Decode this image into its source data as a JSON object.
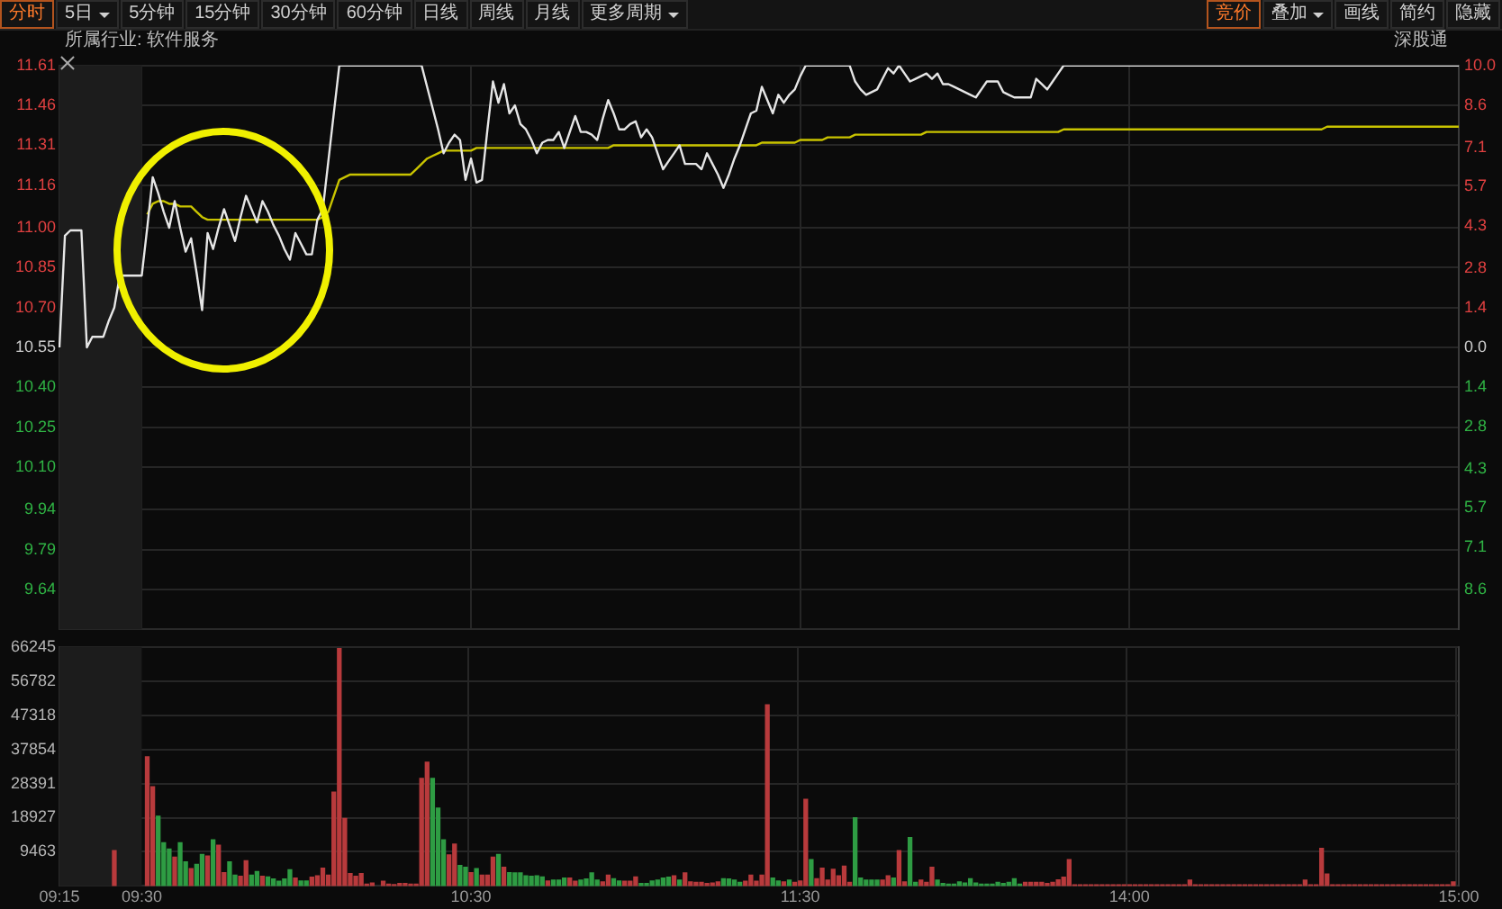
{
  "chart_data": [
    {
      "type": "line",
      "annotations": [
        "分时",
        "5日",
        "5分钟",
        "15分钟",
        "30分钟",
        "60分钟",
        "日线",
        "周线",
        "月线",
        "更多周期",
        "竞价",
        "叠加",
        "画线",
        "简约",
        "隐藏",
        "所属行业: 软件服务",
        "深股通"
      ],
      "categories": [
        "09:15",
        null,
        null,
        null,
        null,
        null,
        null,
        null,
        null,
        null,
        null,
        null,
        null,
        null,
        null,
        "09:30",
        null,
        null,
        null,
        null,
        null,
        null,
        null,
        null,
        null,
        null,
        null,
        null,
        null,
        null,
        null,
        null,
        null,
        null,
        null,
        null,
        null,
        null,
        null,
        null,
        null,
        null,
        null,
        null,
        null,
        null,
        null,
        null,
        null,
        null,
        null,
        null,
        null,
        null,
        null,
        null,
        null,
        null,
        null,
        null,
        null,
        null,
        null,
        null,
        null,
        null,
        null,
        null,
        null,
        null,
        null,
        null,
        null,
        null,
        null,
        "10:30",
        null,
        null,
        null,
        null,
        null,
        null,
        null,
        null,
        null,
        null,
        null,
        null,
        null,
        null,
        null,
        null,
        null,
        null,
        null,
        null,
        null,
        null,
        null,
        null,
        null,
        null,
        null,
        null,
        null,
        null,
        null,
        null,
        null,
        null,
        null,
        null,
        null,
        null,
        null,
        null,
        null,
        null,
        null,
        null,
        null,
        null,
        null,
        null,
        null,
        null,
        null,
        null,
        null,
        null,
        null,
        null,
        null,
        null,
        null,
        "11:30",
        null,
        null,
        null,
        null,
        null,
        null,
        null,
        null,
        null,
        null,
        null,
        null,
        null,
        null,
        null,
        null,
        null,
        null,
        null,
        null,
        null,
        null,
        null,
        null,
        null,
        null,
        null,
        null,
        null,
        null,
        null,
        null,
        null,
        null,
        null,
        null,
        null,
        null,
        null,
        null,
        null,
        null,
        null,
        null,
        null,
        null,
        null,
        null,
        null,
        null,
        null,
        null,
        null,
        null,
        null,
        null,
        null,
        null,
        null,
        "14:00",
        null,
        null,
        null,
        null,
        null,
        null,
        null,
        null,
        null,
        null,
        null,
        null,
        null,
        null,
        null,
        null,
        null,
        null,
        null,
        null,
        null,
        null,
        null,
        null,
        null,
        null,
        null,
        null,
        null,
        null,
        null,
        null,
        null,
        null,
        null,
        null,
        null,
        null,
        null,
        null,
        null,
        null,
        null,
        null,
        null,
        null,
        null,
        null,
        null,
        null,
        null,
        null,
        null,
        null,
        null,
        null,
        null,
        null,
        null,
        "15:00"
      ],
      "ylim": [
        9.49,
        11.61
      ],
      "yticks": [
        11.61,
        11.46,
        11.31,
        11.16,
        {
          "value": 11.0,
          "label": "11.00"
        },
        10.85,
        {
          "value": 10.7,
          "label": "10.70"
        },
        10.55,
        {
          "value": 10.4,
          "label": "10.40"
        },
        10.25,
        {
          "value": 10.1,
          "label": "10.10"
        },
        9.94,
        9.79,
        9.64
      ],
      "y2lim": [
        -10.0,
        10.0
      ],
      "y2ticks": [
        {
          "value": 10,
          "label": "10.0"
        },
        8.6,
        7.1,
        5.7,
        4.3,
        2.8,
        1.4,
        {
          "value": 0,
          "label": "0.0"
        },
        {
          "value": -1.4,
          "label": "1.4"
        },
        {
          "value": -2.8,
          "label": "2.8"
        },
        {
          "value": -4.3,
          "label": "4.3"
        },
        {
          "value": -5.7,
          "label": "5.7"
        },
        {
          "value": -7.1,
          "label": "7.1"
        },
        {
          "value": -8.6,
          "label": "8.6"
        }
      ],
      "grid": true,
      "tick_labels": "y",
      "bands": [
        {
          "axis": "x",
          "from": "09:15",
          "to": "09:30",
          "color": "#1c1c1c"
        }
      ],
      "series": [
        {
          "color": "#e6e6e6",
          "values": [
            10.55,
            10.97,
            10.99,
            10.99,
            10.99,
            10.55,
            10.59,
            10.59,
            10.59,
            10.65,
            10.7,
            10.82,
            10.82,
            10.82,
            10.82,
            10.82,
            11.0,
            11.19,
            11.13,
            11.06,
            11.0,
            11.1,
            11.0,
            10.91,
            10.96,
            10.83,
            10.69,
            10.98,
            10.92,
            11.0,
            11.07,
            11.01,
            10.95,
            11.04,
            11.12,
            11.07,
            11.02,
            11.1,
            11.06,
            11.01,
            10.97,
            10.92,
            10.88,
            10.98,
            10.94,
            10.9,
            10.9,
            11.03,
            11.07,
            11.25,
            11.43,
            11.61,
            11.61,
            11.61,
            11.61,
            11.61,
            11.61,
            11.61,
            11.61,
            11.61,
            11.61,
            11.61,
            11.61,
            11.61,
            11.61,
            11.61,
            11.61,
            11.53,
            11.45,
            11.37,
            11.28,
            11.32,
            11.35,
            11.33,
            11.18,
            11.26,
            11.17,
            11.18,
            11.37,
            11.55,
            11.47,
            11.54,
            11.43,
            11.46,
            11.39,
            11.37,
            11.33,
            11.28,
            11.32,
            11.33,
            11.33,
            11.36,
            11.3,
            11.36,
            11.42,
            11.36,
            11.36,
            11.35,
            11.33,
            11.41,
            11.48,
            11.43,
            11.37,
            11.37,
            11.39,
            11.4,
            11.34,
            11.37,
            11.34,
            11.28,
            11.22,
            11.25,
            11.28,
            11.31,
            11.24,
            11.24,
            11.24,
            11.22,
            11.28,
            11.24,
            11.2,
            11.15,
            11.2,
            11.26,
            11.31,
            11.37,
            11.43,
            11.44,
            11.53,
            11.48,
            11.43,
            11.5,
            11.47,
            11.5,
            11.52,
            11.57,
            11.61,
            11.61,
            11.61,
            11.61,
            11.61,
            11.61,
            11.61,
            11.61,
            11.61,
            11.55,
            11.52,
            11.5,
            11.51,
            11.52,
            11.56,
            11.6,
            11.58,
            11.61,
            11.58,
            11.55,
            11.56,
            11.57,
            11.58,
            11.56,
            11.58,
            11.54,
            11.54,
            11.53,
            11.52,
            11.51,
            11.5,
            11.49,
            11.52,
            11.55,
            11.55,
            11.55,
            11.51,
            11.5,
            11.49,
            11.49,
            11.49,
            11.49,
            11.56,
            11.54,
            11.52,
            11.55,
            11.58,
            11.61,
            11.61,
            11.61,
            11.61,
            11.61,
            11.61,
            11.61,
            11.61,
            11.61,
            11.61,
            11.61,
            11.61,
            11.61,
            11.61,
            11.61,
            11.61,
            11.61,
            11.61,
            11.61,
            11.61,
            11.61,
            11.61,
            11.61,
            11.61,
            11.61,
            11.61,
            11.61,
            11.61,
            11.61,
            11.61,
            11.61,
            11.61,
            11.61,
            11.61,
            11.61,
            11.61,
            11.61,
            11.61,
            11.61,
            11.61,
            11.61,
            11.61,
            11.61,
            11.61,
            11.61,
            11.61,
            11.61,
            11.61,
            11.61,
            11.61,
            11.61,
            11.61,
            11.61,
            11.61,
            11.61,
            11.61,
            11.61,
            11.61,
            11.61,
            11.61,
            11.61,
            11.61,
            11.61,
            11.61,
            11.61,
            11.61,
            11.61,
            11.61,
            11.61,
            11.61,
            11.61,
            11.61,
            11.61
          ]
        },
        {
          "color": "#c9c400",
          "values": [
            null,
            null,
            null,
            null,
            null,
            null,
            null,
            null,
            null,
            null,
            null,
            null,
            null,
            null,
            null,
            null,
            11.05,
            11.09,
            11.1,
            11.1,
            11.09,
            11.09,
            11.08,
            11.08,
            11.08,
            11.06,
            11.04,
            11.03,
            11.03,
            11.03,
            11.03,
            11.03,
            11.03,
            11.03,
            11.03,
            11.03,
            11.03,
            11.03,
            11.03,
            11.03,
            11.03,
            11.03,
            11.03,
            11.03,
            11.03,
            11.03,
            11.03,
            11.03,
            11.04,
            11.06,
            11.12,
            11.18,
            11.19,
            11.2,
            11.2,
            11.2,
            11.2,
            11.2,
            11.2,
            11.2,
            11.2,
            11.2,
            11.2,
            11.2,
            11.2,
            11.22,
            11.24,
            11.26,
            11.27,
            11.28,
            11.29,
            11.29,
            11.29,
            11.29,
            11.29,
            11.29,
            11.3,
            11.3,
            11.3,
            11.3,
            11.3,
            11.3,
            11.3,
            11.3,
            11.3,
            11.3,
            11.3,
            11.3,
            11.3,
            11.3,
            11.3,
            11.3,
            11.3,
            11.3,
            11.3,
            11.3,
            11.3,
            11.3,
            11.3,
            11.3,
            11.3,
            11.31,
            11.31,
            11.31,
            11.31,
            11.31,
            11.31,
            11.31,
            11.31,
            11.31,
            11.31,
            11.31,
            11.31,
            11.31,
            11.31,
            11.31,
            11.31,
            11.31,
            11.31,
            11.31,
            11.31,
            11.31,
            11.31,
            11.31,
            11.31,
            11.31,
            11.31,
            11.31,
            11.32,
            11.32,
            11.32,
            11.32,
            11.32,
            11.32,
            11.32,
            11.33,
            11.33,
            11.33,
            11.33,
            11.33,
            11.34,
            11.34,
            11.34,
            11.34,
            11.34,
            11.35,
            11.35,
            11.35,
            11.35,
            11.35,
            11.35,
            11.35,
            11.35,
            11.35,
            11.35,
            11.35,
            11.35,
            11.35,
            11.36,
            11.36,
            11.36,
            11.36,
            11.36,
            11.36,
            11.36,
            11.36,
            11.36,
            11.36,
            11.36,
            11.36,
            11.36,
            11.36,
            11.36,
            11.36,
            11.36,
            11.36,
            11.36,
            11.36,
            11.36,
            11.36,
            11.36,
            11.36,
            11.36,
            11.37,
            11.37,
            11.37,
            11.37,
            11.37,
            11.37,
            11.37,
            11.37,
            11.37,
            11.37,
            11.37,
            11.37,
            11.37,
            11.37,
            11.37,
            11.37,
            11.37,
            11.37,
            11.37,
            11.37,
            11.37,
            11.37,
            11.37,
            11.37,
            11.37,
            11.37,
            11.37,
            11.37,
            11.37,
            11.37,
            11.37,
            11.37,
            11.37,
            11.37,
            11.37,
            11.37,
            11.37,
            11.37,
            11.37,
            11.37,
            11.37,
            11.37,
            11.37,
            11.37,
            11.37,
            11.37,
            11.37,
            11.37,
            11.38,
            11.38,
            11.38,
            11.38,
            11.38,
            11.38,
            11.38,
            11.38,
            11.38,
            11.38,
            11.38,
            11.38,
            11.38,
            11.38,
            11.38,
            11.38,
            11.38,
            11.38,
            11.38,
            11.38,
            11.38,
            11.38,
            11.38,
            11.38,
            11.38
          ]
        }
      ]
    },
    {
      "type": "bar",
      "categories": [
        "09:15",
        null,
        null,
        null,
        null,
        null,
        null,
        null,
        null,
        null,
        null,
        null,
        null,
        null,
        null,
        "09:30",
        null,
        null,
        null,
        null,
        null,
        null,
        null,
        null,
        null,
        null,
        null,
        null,
        null,
        null,
        null,
        null,
        null,
        null,
        null,
        null,
        null,
        null,
        null,
        null,
        null,
        null,
        null,
        null,
        null,
        null,
        null,
        null,
        null,
        null,
        null,
        null,
        null,
        null,
        null,
        null,
        null,
        null,
        null,
        null,
        null,
        null,
        null,
        null,
        null,
        null,
        null,
        null,
        null,
        null,
        null,
        null,
        null,
        null,
        null,
        "10:30",
        null,
        null,
        null,
        null,
        null,
        null,
        null,
        null,
        null,
        null,
        null,
        null,
        null,
        null,
        null,
        null,
        null,
        null,
        null,
        null,
        null,
        null,
        null,
        null,
        null,
        null,
        null,
        null,
        null,
        null,
        null,
        null,
        null,
        null,
        null,
        null,
        null,
        null,
        null,
        null,
        null,
        null,
        null,
        null,
        null,
        null,
        null,
        null,
        null,
        null,
        null,
        null,
        null,
        null,
        null,
        null,
        null,
        null,
        null,
        "11:30",
        null,
        null,
        null,
        null,
        null,
        null,
        null,
        null,
        null,
        null,
        null,
        null,
        null,
        null,
        null,
        null,
        null,
        null,
        null,
        null,
        null,
        null,
        null,
        null,
        null,
        null,
        null,
        null,
        null,
        null,
        null,
        null,
        null,
        null,
        null,
        null,
        null,
        null,
        null,
        null,
        null,
        null,
        null,
        null,
        null,
        null,
        null,
        null,
        null,
        null,
        null,
        null,
        null,
        null,
        null,
        null,
        null,
        null,
        null,
        "14:00",
        null,
        null,
        null,
        null,
        null,
        null,
        null,
        null,
        null,
        null,
        null,
        null,
        null,
        null,
        null,
        null,
        null,
        null,
        null,
        null,
        null,
        null,
        null,
        null,
        null,
        null,
        null,
        null,
        null,
        null,
        null,
        null,
        null,
        null,
        null,
        null,
        null,
        null,
        null,
        null,
        null,
        null,
        null,
        null,
        null,
        null,
        null,
        null,
        null,
        null,
        null,
        null,
        null,
        null,
        null,
        null,
        null,
        null,
        null,
        "15:00"
      ],
      "ylim": [
        0,
        66245
      ],
      "yticks": [
        66245,
        56782,
        47318,
        37854,
        28391,
        18927,
        9463
      ],
      "grid": true,
      "bands": [
        {
          "axis": "x",
          "from": "09:15",
          "to": "09:30",
          "color": "#1c1c1c"
        }
      ],
      "values": [
        null,
        null,
        null,
        null,
        null,
        null,
        null,
        null,
        null,
        null,
        9800,
        null,
        null,
        null,
        null,
        null,
        35800,
        27500,
        19300,
        12000,
        10200,
        8000,
        12000,
        6700,
        4800,
        6000,
        8700,
        8300,
        12800,
        11300,
        3700,
        6700,
        3000,
        2700,
        7000,
        3000,
        4000,
        2700,
        2500,
        1900,
        1300,
        1900,
        4500,
        2200,
        1400,
        1400,
        2400,
        2800,
        4900,
        3000,
        26000,
        65800,
        18700,
        3400,
        2700,
        3400,
        500,
        800,
        null,
        1300,
        500,
        400,
        700,
        700,
        500,
        500,
        29800,
        34300,
        29800,
        21600,
        12800,
        8600,
        11600,
        5700,
        5200,
        3700,
        4800,
        3000,
        3000,
        8000,
        8700,
        5200,
        3700,
        3600,
        3600,
        2800,
        2700,
        2800,
        2500,
        1400,
        1600,
        1600,
        2200,
        2200,
        1300,
        1600,
        1900,
        3600,
        1600,
        1100,
        3000,
        2000,
        1400,
        1300,
        1300,
        2500,
        700,
        700,
        1400,
        1600,
        2200,
        2400,
        2800,
        1600,
        3600,
        1100,
        1000,
        1000,
        700,
        800,
        1100,
        2000,
        1900,
        1600,
        1000,
        1300,
        3000,
        1300,
        3000,
        50200,
        2200,
        1400,
        1100,
        1600,
        1000,
        1400,
        24000,
        7300,
        2000,
        4900,
        1600,
        4600,
        2800,
        5500,
        1000,
        18900,
        2200,
        1600,
        1600,
        1600,
        1600,
        2800,
        2200,
        9800,
        1100,
        13400,
        1000,
        1600,
        1000,
        5200,
        1600,
        700,
        500,
        500,
        1100,
        800,
        2000,
        800,
        500,
        500,
        500,
        1000,
        700,
        1000,
        2000,
        500,
        1000,
        1000,
        1000,
        1000,
        700,
        1000,
        1700,
        2400,
        7300,
        300,
        300,
        300,
        300,
        300,
        300,
        300,
        300,
        300,
        300,
        300,
        300,
        300,
        300,
        300,
        300,
        300,
        300,
        300,
        300,
        300,
        1600,
        300,
        300,
        300,
        300,
        300,
        300,
        300,
        300,
        300,
        300,
        300,
        300,
        300,
        300,
        300,
        300,
        300,
        300,
        300,
        300,
        1600,
        300,
        300,
        10400,
        3300,
        300,
        300,
        300,
        300,
        300,
        300,
        300,
        300,
        300,
        300,
        300,
        300,
        300,
        300,
        300,
        300,
        300,
        300,
        300,
        300,
        300,
        300,
        1100,
        null
      ],
      "colors": [
        null,
        null,
        null,
        null,
        null,
        null,
        null,
        null,
        null,
        null,
        "#b83a3c",
        null,
        null,
        null,
        null,
        null,
        "#b83a3c",
        "#b83a3c",
        "#2e9c43",
        "#2e9c43",
        "#2e9c43",
        "#b83a3c",
        "#2e9c43",
        "#2e9c43",
        "#b83a3c",
        "#2e9c43",
        "#2e9c43",
        "#b83a3c",
        "#2e9c43",
        "#b83a3c",
        "#b83a3c",
        "#2e9c43",
        "#2e9c43",
        "#b83a3c",
        "#b83a3c",
        "#2e9c43",
        "#2e9c43",
        "#b83a3c",
        "#2e9c43",
        "#2e9c43",
        "#2e9c43",
        "#2e9c43",
        "#2e9c43",
        "#b83a3c",
        "#2e9c43",
        "#2e9c43",
        "#b83a3c",
        "#b83a3c",
        "#b83a3c",
        "#b83a3c",
        "#b83a3c",
        "#b83a3c",
        "#b83a3c",
        "#b83a3c",
        "#b83a3c",
        "#b83a3c",
        "#b83a3c",
        "#b83a3c",
        null,
        "#b83a3c",
        "#b83a3c",
        "#b83a3c",
        "#b83a3c",
        "#b83a3c",
        "#b83a3c",
        "#b83a3c",
        "#b83a3c",
        "#b83a3c",
        "#2e9c43",
        "#2e9c43",
        "#2e9c43",
        "#b83a3c",
        "#b83a3c",
        "#2e9c43",
        "#2e9c43",
        "#b83a3c",
        "#2e9c43",
        "#b83a3c",
        "#b83a3c",
        "#b83a3c",
        "#2e9c43",
        "#b83a3c",
        "#2e9c43",
        "#2e9c43",
        "#2e9c43",
        "#2e9c43",
        "#2e9c43",
        "#2e9c43",
        "#2e9c43",
        "#b83a3c",
        "#2e9c43",
        "#2e9c43",
        "#2e9c43",
        "#b83a3c",
        "#b83a3c",
        "#2e9c43",
        "#2e9c43",
        "#2e9c43",
        "#2e9c43",
        "#b83a3c",
        "#b83a3c",
        "#2e9c43",
        "#2e9c43",
        "#b83a3c",
        "#b83a3c",
        "#b83a3c",
        "#2e9c43",
        "#2e9c43",
        "#2e9c43",
        "#2e9c43",
        "#2e9c43",
        "#2e9c43",
        "#b83a3c",
        "#2e9c43",
        "#b83a3c",
        "#b83a3c",
        "#b83a3c",
        "#b83a3c",
        "#b83a3c",
        "#b83a3c",
        "#b83a3c",
        "#2e9c43",
        "#2e9c43",
        "#2e9c43",
        "#2e9c43",
        "#b83a3c",
        "#b83a3c",
        "#b83a3c",
        "#b83a3c",
        "#b83a3c",
        "#2e9c43",
        "#2e9c43",
        "#b83a3c",
        "#2e9c43",
        "#b83a3c",
        "#b83a3c",
        "#b83a3c",
        "#2e9c43",
        "#b83a3c",
        "#b83a3c",
        "#b83a3c",
        "#b83a3c",
        "#b83a3c",
        "#b83a3c",
        "#b83a3c",
        "#2e9c43",
        "#2e9c43",
        "#2e9c43",
        "#2e9c43",
        "#2e9c43",
        "#b83a3c",
        "#b83a3c",
        "#2e9c43",
        "#b83a3c",
        "#b83a3c",
        "#2e9c43",
        "#2e9c43",
        "#b83a3c",
        "#b83a3c",
        "#b83a3c",
        "#2e9c43",
        "#2e9c43",
        "#2e9c43",
        "#2e9c43",
        "#2e9c43",
        "#2e9c43",
        "#2e9c43",
        "#2e9c43",
        "#2e9c43",
        "#2e9c43",
        "#2e9c43",
        "#2e9c43",
        "#2e9c43",
        "#2e9c43",
        "#2e9c43",
        "#2e9c43",
        "#b83a3c",
        "#b83a3c",
        "#b83a3c",
        "#b83a3c",
        "#b83a3c",
        "#b83a3c",
        "#b83a3c",
        "#b83a3c",
        "#b83a3c",
        "#b83a3c",
        "#b83a3c",
        "#b83a3c",
        "#b83a3c",
        "#b83a3c",
        "#b83a3c",
        "#b83a3c",
        "#b83a3c",
        "#b83a3c",
        "#b83a3c",
        "#b83a3c",
        "#b83a3c",
        "#b83a3c",
        "#b83a3c",
        "#b83a3c",
        "#b83a3c",
        "#b83a3c",
        "#b83a3c",
        "#b83a3c",
        "#b83a3c",
        "#b83a3c",
        "#b83a3c",
        "#b83a3c",
        "#b83a3c",
        "#b83a3c",
        "#b83a3c",
        "#b83a3c",
        "#b83a3c",
        "#b83a3c",
        "#b83a3c",
        "#b83a3c",
        "#b83a3c",
        "#b83a3c",
        "#b83a3c",
        "#b83a3c",
        "#b83a3c",
        "#b83a3c",
        "#b83a3c",
        "#b83a3c",
        "#b83a3c",
        "#b83a3c",
        "#b83a3c",
        "#b83a3c",
        "#b83a3c",
        "#b83a3c",
        "#b83a3c",
        "#b83a3c",
        "#b83a3c",
        "#b83a3c",
        "#b83a3c",
        "#b83a3c",
        "#b83a3c",
        "#b83a3c",
        "#b83a3c",
        "#b83a3c",
        "#b83a3c",
        "#b83a3c",
        "#b83a3c",
        "#b83a3c",
        "#b83a3c",
        "#b83a3c",
        "#b83a3c",
        "#b83a3c",
        "#b83a3c",
        "#b83a3c",
        "#b83a3c",
        "#b83a3c",
        "#b83a3c",
        "#b83a3c",
        "#b83a3c",
        null
      ]
    }
  ]
}
